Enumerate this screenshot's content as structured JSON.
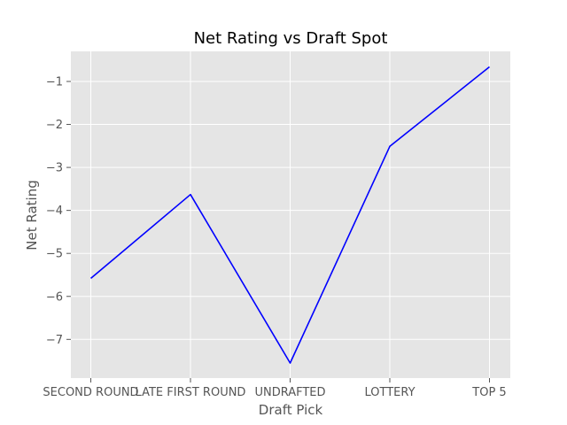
{
  "chart_data": {
    "type": "line",
    "title": "Net Rating vs Draft Spot",
    "xlabel": "Draft Pick",
    "ylabel": "Net Rating",
    "categories": [
      "SECOND ROUND",
      "LATE FIRST ROUND",
      "UNDRAFTED",
      "LOTTERY",
      "TOP 5"
    ],
    "series": [
      {
        "values": [
          -5.58,
          -3.63,
          -7.55,
          -2.51,
          -0.66
        ]
      }
    ],
    "ylim": [
      -7.9,
      -0.3
    ],
    "yticks": [
      -7,
      -6,
      -5,
      -4,
      -3,
      -2,
      -1
    ],
    "ytick_labels": [
      "−7",
      "−6",
      "−5",
      "−4",
      "−3",
      "−2",
      "−1"
    ],
    "grid": true,
    "colors": {
      "line": "#0000ff",
      "plot_bg": "#e5e5e5",
      "grid": "#ffffff"
    }
  }
}
